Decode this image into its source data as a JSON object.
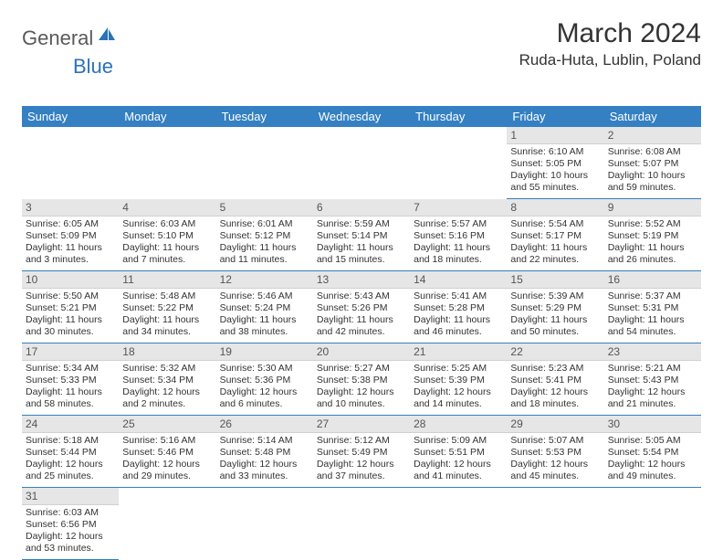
{
  "logo": {
    "general": "General",
    "blue": "Blue"
  },
  "title": "March 2024",
  "location": "Ruda-Huta, Lublin, Poland",
  "colors": {
    "header_bg": "#3480c2",
    "daynum_bg": "#e6e6e6",
    "cell_border": "#3480c2",
    "text": "#333333"
  },
  "day_headers": [
    "Sunday",
    "Monday",
    "Tuesday",
    "Wednesday",
    "Thursday",
    "Friday",
    "Saturday"
  ],
  "weeks": [
    [
      null,
      null,
      null,
      null,
      null,
      {
        "n": "1",
        "sr": "Sunrise: 6:10 AM",
        "ss": "Sunset: 5:05 PM",
        "dl": "Daylight: 10 hours and 55 minutes."
      },
      {
        "n": "2",
        "sr": "Sunrise: 6:08 AM",
        "ss": "Sunset: 5:07 PM",
        "dl": "Daylight: 10 hours and 59 minutes."
      }
    ],
    [
      {
        "n": "3",
        "sr": "Sunrise: 6:05 AM",
        "ss": "Sunset: 5:09 PM",
        "dl": "Daylight: 11 hours and 3 minutes."
      },
      {
        "n": "4",
        "sr": "Sunrise: 6:03 AM",
        "ss": "Sunset: 5:10 PM",
        "dl": "Daylight: 11 hours and 7 minutes."
      },
      {
        "n": "5",
        "sr": "Sunrise: 6:01 AM",
        "ss": "Sunset: 5:12 PM",
        "dl": "Daylight: 11 hours and 11 minutes."
      },
      {
        "n": "6",
        "sr": "Sunrise: 5:59 AM",
        "ss": "Sunset: 5:14 PM",
        "dl": "Daylight: 11 hours and 15 minutes."
      },
      {
        "n": "7",
        "sr": "Sunrise: 5:57 AM",
        "ss": "Sunset: 5:16 PM",
        "dl": "Daylight: 11 hours and 18 minutes."
      },
      {
        "n": "8",
        "sr": "Sunrise: 5:54 AM",
        "ss": "Sunset: 5:17 PM",
        "dl": "Daylight: 11 hours and 22 minutes."
      },
      {
        "n": "9",
        "sr": "Sunrise: 5:52 AM",
        "ss": "Sunset: 5:19 PM",
        "dl": "Daylight: 11 hours and 26 minutes."
      }
    ],
    [
      {
        "n": "10",
        "sr": "Sunrise: 5:50 AM",
        "ss": "Sunset: 5:21 PM",
        "dl": "Daylight: 11 hours and 30 minutes."
      },
      {
        "n": "11",
        "sr": "Sunrise: 5:48 AM",
        "ss": "Sunset: 5:22 PM",
        "dl": "Daylight: 11 hours and 34 minutes."
      },
      {
        "n": "12",
        "sr": "Sunrise: 5:46 AM",
        "ss": "Sunset: 5:24 PM",
        "dl": "Daylight: 11 hours and 38 minutes."
      },
      {
        "n": "13",
        "sr": "Sunrise: 5:43 AM",
        "ss": "Sunset: 5:26 PM",
        "dl": "Daylight: 11 hours and 42 minutes."
      },
      {
        "n": "14",
        "sr": "Sunrise: 5:41 AM",
        "ss": "Sunset: 5:28 PM",
        "dl": "Daylight: 11 hours and 46 minutes."
      },
      {
        "n": "15",
        "sr": "Sunrise: 5:39 AM",
        "ss": "Sunset: 5:29 PM",
        "dl": "Daylight: 11 hours and 50 minutes."
      },
      {
        "n": "16",
        "sr": "Sunrise: 5:37 AM",
        "ss": "Sunset: 5:31 PM",
        "dl": "Daylight: 11 hours and 54 minutes."
      }
    ],
    [
      {
        "n": "17",
        "sr": "Sunrise: 5:34 AM",
        "ss": "Sunset: 5:33 PM",
        "dl": "Daylight: 11 hours and 58 minutes."
      },
      {
        "n": "18",
        "sr": "Sunrise: 5:32 AM",
        "ss": "Sunset: 5:34 PM",
        "dl": "Daylight: 12 hours and 2 minutes."
      },
      {
        "n": "19",
        "sr": "Sunrise: 5:30 AM",
        "ss": "Sunset: 5:36 PM",
        "dl": "Daylight: 12 hours and 6 minutes."
      },
      {
        "n": "20",
        "sr": "Sunrise: 5:27 AM",
        "ss": "Sunset: 5:38 PM",
        "dl": "Daylight: 12 hours and 10 minutes."
      },
      {
        "n": "21",
        "sr": "Sunrise: 5:25 AM",
        "ss": "Sunset: 5:39 PM",
        "dl": "Daylight: 12 hours and 14 minutes."
      },
      {
        "n": "22",
        "sr": "Sunrise: 5:23 AM",
        "ss": "Sunset: 5:41 PM",
        "dl": "Daylight: 12 hours and 18 minutes."
      },
      {
        "n": "23",
        "sr": "Sunrise: 5:21 AM",
        "ss": "Sunset: 5:43 PM",
        "dl": "Daylight: 12 hours and 21 minutes."
      }
    ],
    [
      {
        "n": "24",
        "sr": "Sunrise: 5:18 AM",
        "ss": "Sunset: 5:44 PM",
        "dl": "Daylight: 12 hours and 25 minutes."
      },
      {
        "n": "25",
        "sr": "Sunrise: 5:16 AM",
        "ss": "Sunset: 5:46 PM",
        "dl": "Daylight: 12 hours and 29 minutes."
      },
      {
        "n": "26",
        "sr": "Sunrise: 5:14 AM",
        "ss": "Sunset: 5:48 PM",
        "dl": "Daylight: 12 hours and 33 minutes."
      },
      {
        "n": "27",
        "sr": "Sunrise: 5:12 AM",
        "ss": "Sunset: 5:49 PM",
        "dl": "Daylight: 12 hours and 37 minutes."
      },
      {
        "n": "28",
        "sr": "Sunrise: 5:09 AM",
        "ss": "Sunset: 5:51 PM",
        "dl": "Daylight: 12 hours and 41 minutes."
      },
      {
        "n": "29",
        "sr": "Sunrise: 5:07 AM",
        "ss": "Sunset: 5:53 PM",
        "dl": "Daylight: 12 hours and 45 minutes."
      },
      {
        "n": "30",
        "sr": "Sunrise: 5:05 AM",
        "ss": "Sunset: 5:54 PM",
        "dl": "Daylight: 12 hours and 49 minutes."
      }
    ],
    [
      {
        "n": "31",
        "sr": "Sunrise: 6:03 AM",
        "ss": "Sunset: 6:56 PM",
        "dl": "Daylight: 12 hours and 53 minutes."
      },
      null,
      null,
      null,
      null,
      null,
      null
    ]
  ]
}
